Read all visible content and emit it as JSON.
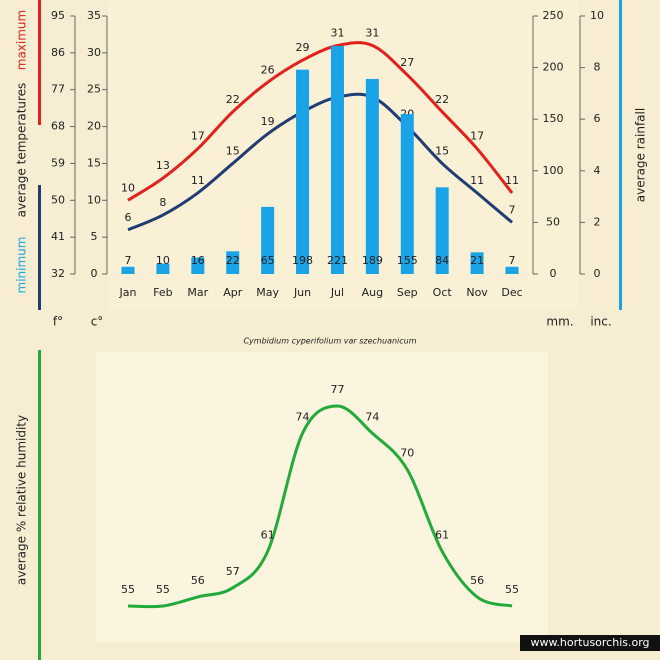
{
  "chart_data": [
    {
      "type": "climate",
      "categories": [
        "Jan",
        "Feb",
        "Mar",
        "Apr",
        "May",
        "Jun",
        "Jul",
        "Aug",
        "Sep",
        "Oct",
        "Nov",
        "Dec"
      ],
      "ylabel": "average temperatures",
      "y_unit": "c°",
      "ylim": [
        0,
        35
      ],
      "yticks": [
        0,
        5,
        10,
        15,
        20,
        25,
        30,
        35
      ],
      "y3_unit": "f°",
      "y3lim": [
        32,
        95
      ],
      "y3ticks": [
        32,
        41,
        50,
        59,
        68,
        77,
        86,
        95
      ],
      "y2label": "average rainfall",
      "y2_unit": "mm.",
      "y2lim": [
        0,
        250
      ],
      "y2ticks": [
        0,
        50,
        100,
        150,
        200,
        250
      ],
      "y4_unit": "inc.",
      "y4lim": [
        0,
        10
      ],
      "y4ticks": [
        0,
        2,
        4,
        6,
        8,
        10
      ],
      "series": [
        {
          "name": "maximum",
          "color": "#e3201b",
          "values": [
            10,
            13,
            17,
            22,
            26,
            29,
            31,
            31,
            27,
            22,
            17,
            11
          ]
        },
        {
          "name": "minimum",
          "color": "#1f3d72",
          "values": [
            6,
            8,
            11,
            15,
            19,
            22,
            24,
            24,
            20,
            15,
            11,
            7
          ]
        },
        {
          "type": "bar",
          "axis": "y2",
          "color": "#1aa3e6",
          "values": [
            7,
            10,
            16,
            22,
            65,
            198,
            221,
            189,
            155,
            84,
            21,
            7
          ]
        }
      ],
      "caption": "Cymbidium  cyperifolium var szechuanicum"
    },
    {
      "type": "line",
      "ylabel": "average %  relative humidity",
      "color": "#22aa3a",
      "values": [
        55,
        55,
        56,
        57,
        61,
        74,
        77,
        74,
        70,
        61,
        56,
        55
      ]
    }
  ],
  "watermark": "www.hortusorchis.org"
}
